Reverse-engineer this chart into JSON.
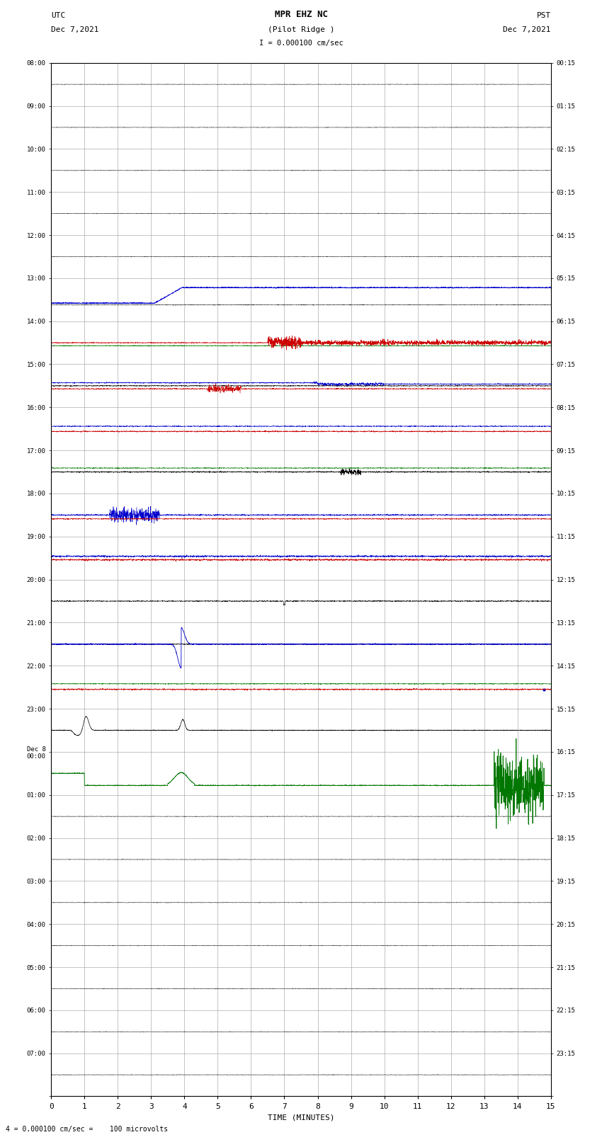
{
  "title_line1": "MPR EHZ NC",
  "title_line2": "(Pilot Ridge )",
  "title_line3": "I = 0.000100 cm/sec",
  "left_label": "UTC",
  "left_date": "Dec 7,2021",
  "right_label": "PST",
  "right_date": "Dec 7,2021",
  "xlabel": "TIME (MINUTES)",
  "footer": "= 0.000100 cm/sec =    100 microvolts",
  "footer_prefix": "4",
  "xlim": [
    0,
    15
  ],
  "n_rows": 24,
  "left_times": [
    "08:00",
    "09:00",
    "10:00",
    "11:00",
    "12:00",
    "13:00",
    "14:00",
    "15:00",
    "16:00",
    "17:00",
    "18:00",
    "19:00",
    "20:00",
    "21:00",
    "22:00",
    "23:00",
    "Dec 8\n00:00",
    "01:00",
    "02:00",
    "03:00",
    "04:00",
    "05:00",
    "06:00",
    "07:00"
  ],
  "right_times": [
    "00:15",
    "01:15",
    "02:15",
    "03:15",
    "04:15",
    "05:15",
    "06:15",
    "07:15",
    "08:15",
    "09:15",
    "10:15",
    "11:15",
    "12:15",
    "13:15",
    "14:15",
    "15:15",
    "16:15",
    "17:15",
    "18:15",
    "19:15",
    "20:15",
    "21:15",
    "22:15",
    "23:15"
  ],
  "bg_color": "#ffffff",
  "grid_color": "#999999",
  "row_colors": [
    "#000000",
    "#000000",
    "#000000",
    "#000000",
    "#000000",
    "#000000",
    "#000000",
    "#007700",
    "#000000",
    "#cc0000",
    "#007700",
    "#000000",
    "#cc0000",
    "#0000cc",
    "#007700",
    "#000000",
    "#cc0000",
    "#0000cc",
    "#007700",
    "#000000",
    "#cc0000",
    "#0000cc",
    "#007700",
    "#000000"
  ]
}
